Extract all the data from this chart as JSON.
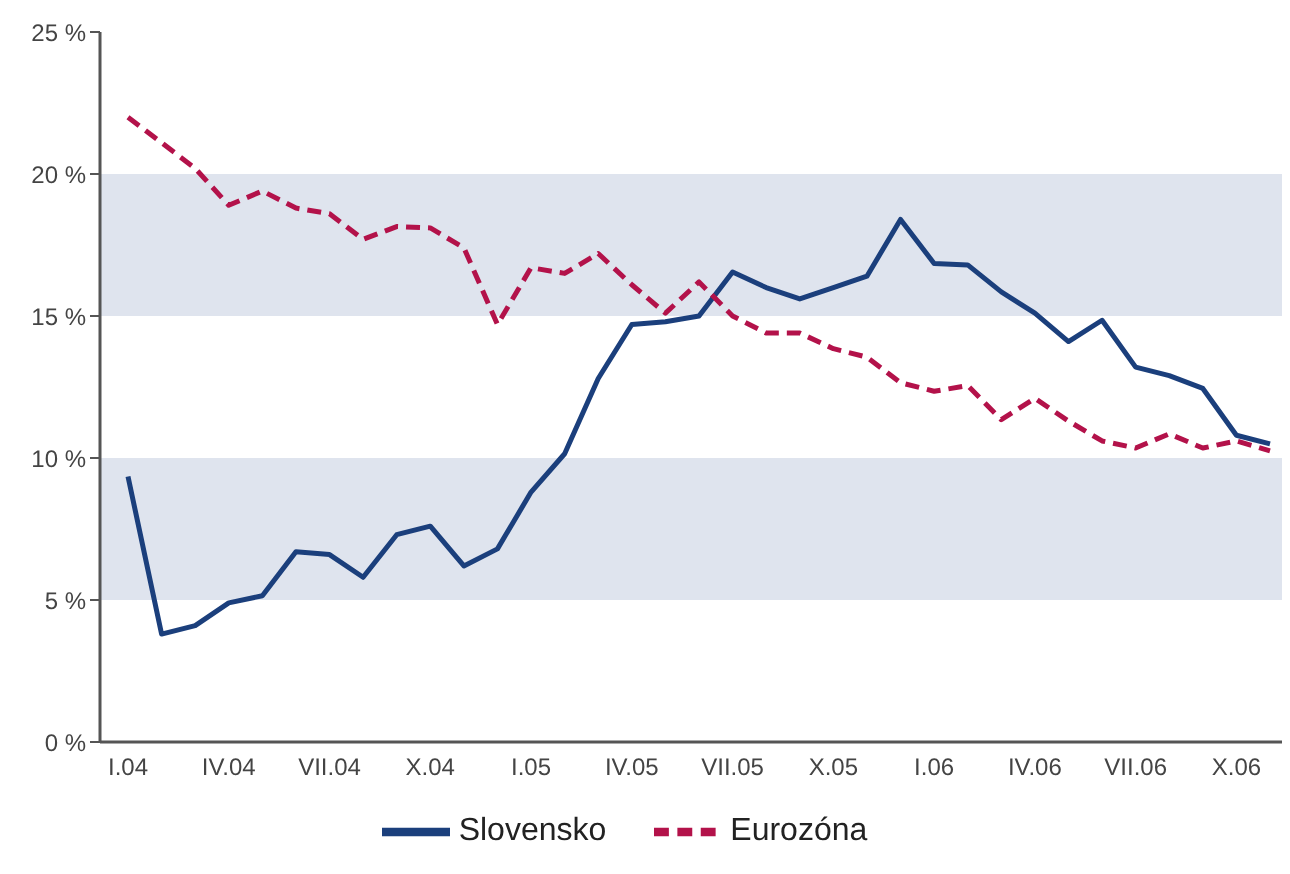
{
  "chart_data": {
    "type": "line",
    "categories": [
      "I.04",
      null,
      null,
      "IV.04",
      null,
      null,
      "VII.04",
      null,
      null,
      "X.04",
      null,
      null,
      "I.05",
      null,
      null,
      "IV.05",
      null,
      null,
      "VII.05",
      null,
      null,
      "X.05",
      null,
      null,
      "I.06",
      null,
      null,
      "IV.06",
      null,
      null,
      "VII.06",
      null,
      null,
      "X.06",
      null
    ],
    "series": [
      {
        "name": "Slovensko",
        "color": "#1b3f7c",
        "line_style": "solid",
        "values": [
          9.35,
          3.8,
          4.1,
          4.9,
          5.15,
          6.7,
          6.6,
          5.8,
          7.3,
          7.6,
          6.2,
          6.8,
          8.8,
          10.15,
          12.8,
          14.7,
          14.8,
          15.0,
          16.55,
          16.0,
          15.6,
          16.0,
          16.4,
          18.4,
          16.85,
          16.8,
          15.85,
          15.1,
          14.1,
          14.85,
          13.2,
          12.9,
          12.45,
          10.8,
          10.5
        ]
      },
      {
        "name": "Eurozóna",
        "color": "#b3124a",
        "line_style": "dashed",
        "values": [
          22.0,
          21.1,
          20.2,
          18.9,
          19.4,
          18.8,
          18.6,
          17.7,
          18.15,
          18.1,
          17.4,
          14.7,
          16.7,
          16.5,
          17.2,
          16.1,
          15.1,
          16.2,
          15.0,
          14.4,
          14.4,
          13.85,
          13.55,
          12.65,
          12.35,
          12.55,
          11.35,
          12.1,
          11.3,
          10.6,
          10.35,
          10.85,
          10.35,
          10.6,
          10.25
        ]
      }
    ],
    "ylim": [
      0,
      25
    ],
    "yticks": [
      {
        "value": 0,
        "label": "0 %"
      },
      {
        "value": 5,
        "label": "5 %"
      },
      {
        "value": 10,
        "label": "10 %"
      },
      {
        "value": 15,
        "label": "15 %"
      },
      {
        "value": 20,
        "label": "20 %"
      },
      {
        "value": 25,
        "label": "25 %"
      }
    ],
    "bands": [
      {
        "axis": "y",
        "from": 5,
        "to": 10,
        "color": "#dfe4ee"
      },
      {
        "axis": "y",
        "from": 15,
        "to": 20,
        "color": "#dfe4ee"
      }
    ],
    "grid": false,
    "legend": "bottom",
    "marker": "none"
  }
}
